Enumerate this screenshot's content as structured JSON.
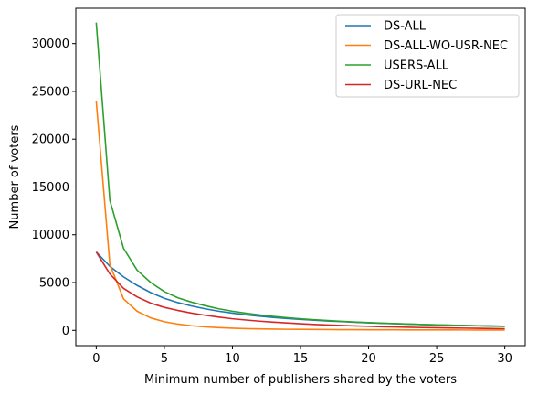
{
  "chart_data": {
    "type": "line",
    "title": "",
    "xlabel": "Minimum number of publishers shared by the voters",
    "ylabel": "Number of voters",
    "xlim": [
      -1.5,
      31.5
    ],
    "ylim": [
      -1600,
      33700
    ],
    "xticks": [
      0,
      5,
      10,
      15,
      20,
      25,
      30
    ],
    "yticks": [
      0,
      5000,
      10000,
      15000,
      20000,
      25000,
      30000
    ],
    "grid": false,
    "legend": "top-right",
    "x": [
      0,
      1,
      2,
      3,
      4,
      5,
      6,
      7,
      8,
      9,
      10,
      11,
      12,
      13,
      14,
      15,
      16,
      17,
      18,
      19,
      20,
      21,
      22,
      23,
      24,
      25,
      26,
      27,
      28,
      29,
      30
    ],
    "series": [
      {
        "name": "DS-ALL",
        "color": "#1f77b4",
        "values": [
          8200,
          6700,
          5600,
          4700,
          3950,
          3350,
          2900,
          2550,
          2250,
          2000,
          1800,
          1620,
          1480,
          1350,
          1240,
          1140,
          1060,
          980,
          910,
          850,
          790,
          740,
          690,
          650,
          610,
          570,
          540,
          510,
          480,
          460,
          430
        ]
      },
      {
        "name": "DS-ALL-WO-USR-NEC",
        "color": "#ff7f0e",
        "values": [
          24000,
          6900,
          3300,
          2000,
          1300,
          900,
          650,
          480,
          360,
          280,
          220,
          180,
          150,
          130,
          110,
          100,
          90,
          80,
          72,
          66,
          60,
          55,
          52,
          48,
          45,
          42,
          40,
          38,
          36,
          34,
          32
        ]
      },
      {
        "name": "USERS-ALL",
        "color": "#2ca02c",
        "values": [
          32200,
          13600,
          8600,
          6300,
          5000,
          4050,
          3400,
          2950,
          2580,
          2250,
          2000,
          1790,
          1610,
          1460,
          1330,
          1210,
          1110,
          1020,
          940,
          870,
          810,
          750,
          700,
          650,
          610,
          570,
          530,
          500,
          470,
          440,
          410
        ]
      },
      {
        "name": "DS-URL-NEC",
        "color": "#d62728",
        "values": [
          8200,
          5900,
          4400,
          3500,
          2850,
          2400,
          2080,
          1800,
          1580,
          1380,
          1210,
          1080,
          960,
          860,
          770,
          690,
          620,
          560,
          510,
          460,
          420,
          380,
          350,
          320,
          290,
          270,
          250,
          230,
          210,
          190,
          170
        ]
      }
    ]
  }
}
